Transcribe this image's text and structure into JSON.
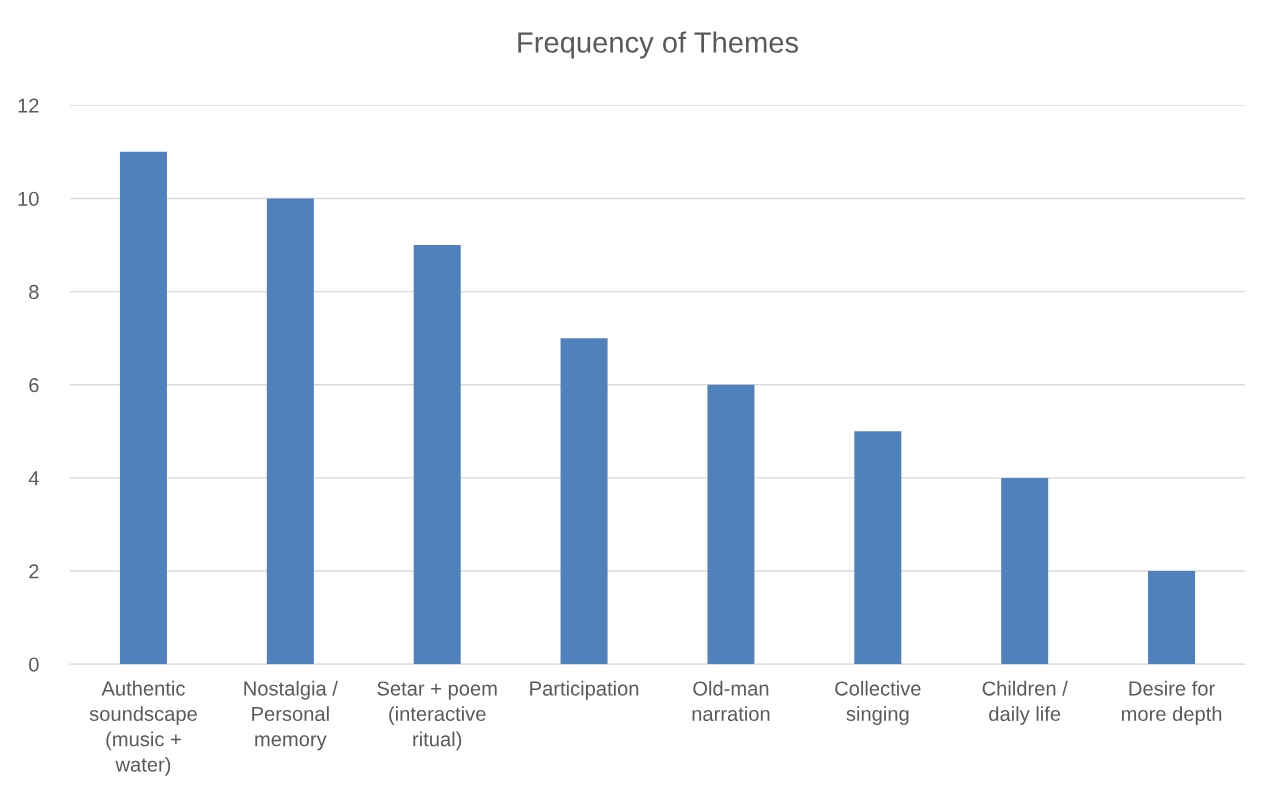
{
  "chart_data": {
    "type": "bar",
    "title": "Frequency of Themes",
    "categories": [
      "Authentic\nsoundscape\n(music +\nwater)",
      "Nostalgia /\nPersonal\nmemory",
      "Setar + poem\n(interactive\nritual)",
      "Participation",
      "Old-man\nnarration",
      "Collective\nsinging",
      "Children /\ndaily life",
      "Desire for\nmore depth"
    ],
    "values": [
      11,
      10,
      9,
      7,
      6,
      5,
      4,
      2
    ],
    "color": "#4f81bd",
    "ylim": [
      0,
      12
    ],
    "yticks": [
      0,
      2,
      4,
      6,
      8,
      10,
      12
    ],
    "grid": "y",
    "legend": false
  }
}
